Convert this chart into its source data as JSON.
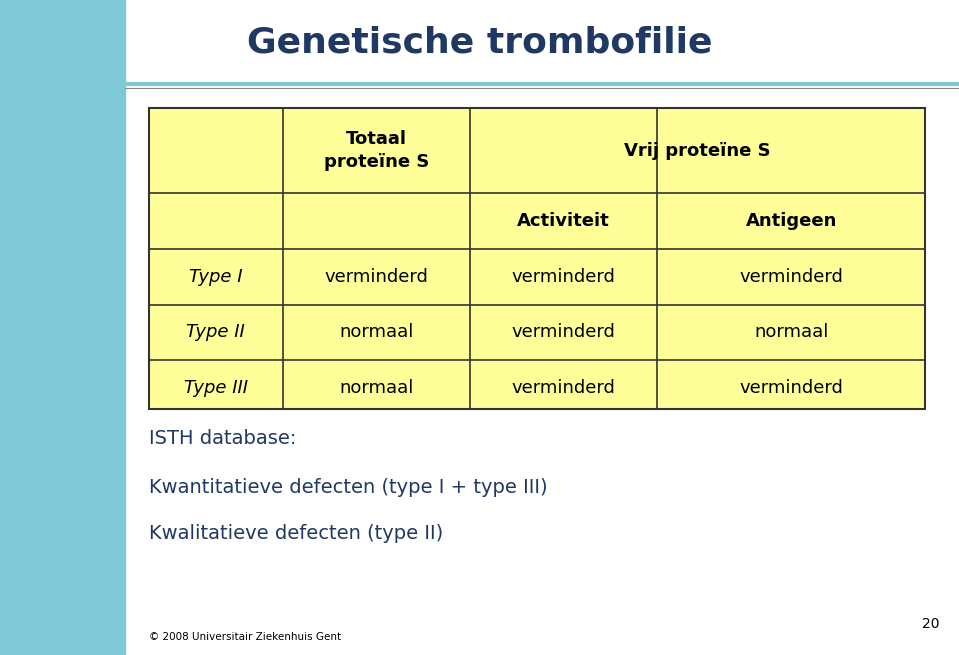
{
  "title": "Genetische trombofilie",
  "title_color": "#1F3864",
  "title_fontsize": 26,
  "bg_color": "#FFFFFF",
  "sidebar_color": "#7EC8D8",
  "header_line_color": "#7EC8D8",
  "table_bg": "#FFFF99",
  "table_border": "#333333",
  "rows": [
    [
      "Type I",
      "verminderd",
      "verminderd",
      "verminderd"
    ],
    [
      "Type II",
      "normaal",
      "verminderd",
      "normaal"
    ],
    [
      "Type III",
      "normaal",
      "verminderd",
      "verminderd"
    ]
  ],
  "footer_lines": [
    "ISTH database:",
    "Kwantitatieve defecten (type I + type III)",
    "Kwalitatieve defecten (type II)"
  ],
  "footer_color": "#1F3864",
  "footer_fontsize": 14,
  "page_number": "20",
  "copyright": "© 2008 Universitair Ziekenhuis Gent"
}
